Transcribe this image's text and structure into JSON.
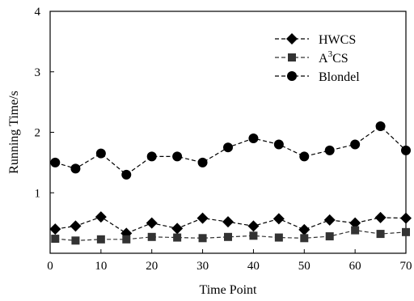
{
  "chart_data": {
    "type": "line",
    "xlabel": "Time Point",
    "ylabel": "Running Time/s",
    "xlim": [
      0,
      70
    ],
    "ylim": [
      0,
      4
    ],
    "xticks": [
      0,
      10,
      20,
      30,
      40,
      50,
      60,
      70
    ],
    "yticks": [
      1,
      2,
      3,
      4
    ],
    "x": [
      1,
      5,
      10,
      15,
      20,
      25,
      30,
      35,
      40,
      45,
      50,
      55,
      60,
      65,
      70
    ],
    "grid": false,
    "legend_position": "top-right",
    "series": [
      {
        "name": "HWCS",
        "marker": "diamond",
        "values": [
          0.4,
          0.45,
          0.6,
          0.33,
          0.5,
          0.41,
          0.58,
          0.52,
          0.45,
          0.57,
          0.39,
          0.55,
          0.5,
          0.59,
          0.58
        ]
      },
      {
        "name": "A3CS",
        "name_base": "A",
        "name_sup": "3",
        "name_tail": "CS",
        "marker": "square",
        "values": [
          0.24,
          0.21,
          0.23,
          0.23,
          0.27,
          0.26,
          0.25,
          0.27,
          0.29,
          0.26,
          0.25,
          0.28,
          0.38,
          0.32,
          0.35
        ]
      },
      {
        "name": "Blondel",
        "marker": "circle",
        "values": [
          1.5,
          1.4,
          1.65,
          1.3,
          1.6,
          1.6,
          1.5,
          1.75,
          1.9,
          1.8,
          1.6,
          1.7,
          1.8,
          2.1,
          1.7
        ]
      }
    ]
  }
}
